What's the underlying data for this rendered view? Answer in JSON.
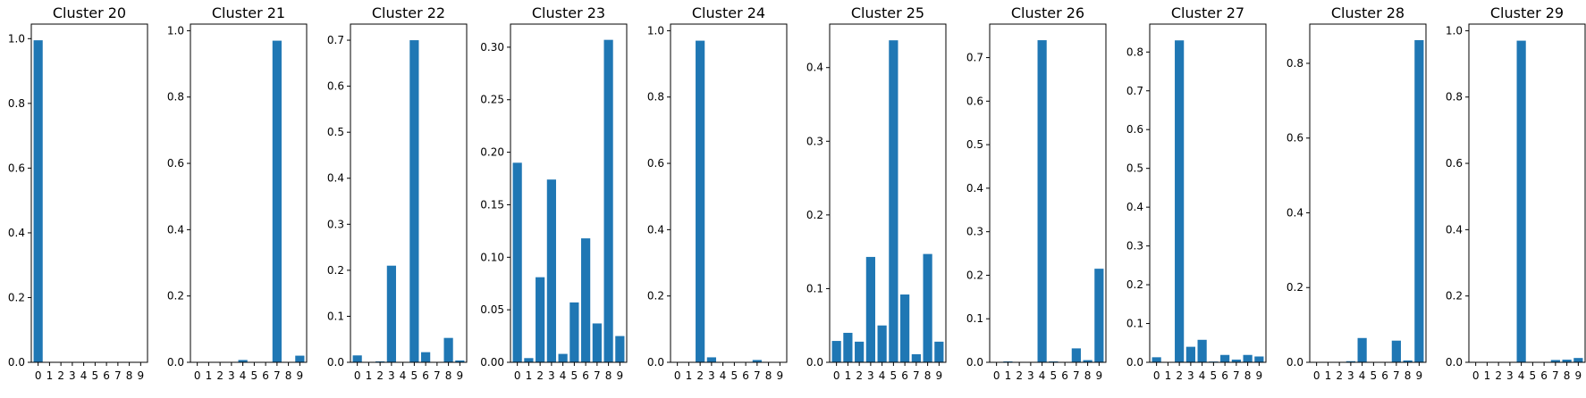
{
  "figure": {
    "background": "#ffffff",
    "bar_color": "#1f77b4"
  },
  "chart_data": [
    {
      "type": "bar",
      "title": "Cluster 20",
      "categories": [
        "0",
        "1",
        "2",
        "3",
        "4",
        "5",
        "6",
        "7",
        "8",
        "9"
      ],
      "values": [
        0.995,
        0,
        0,
        0,
        0,
        0,
        0,
        0,
        0,
        0
      ],
      "ylim": [
        0,
        1.045
      ],
      "yticks": [
        "0.0",
        "0.2",
        "0.4",
        "0.6",
        "0.8",
        "1.0"
      ],
      "ytick_values": [
        0,
        0.2,
        0.4,
        0.6,
        0.8,
        1.0
      ],
      "grid": false
    },
    {
      "type": "bar",
      "title": "Cluster 21",
      "categories": [
        "0",
        "1",
        "2",
        "3",
        "4",
        "5",
        "6",
        "7",
        "8",
        "9"
      ],
      "values": [
        0,
        0,
        0,
        0,
        0.007,
        0,
        0,
        0.97,
        0,
        0.02
      ],
      "ylim": [
        0,
        1.02
      ],
      "yticks": [
        "0.0",
        "0.2",
        "0.4",
        "0.6",
        "0.8",
        "1.0"
      ],
      "ytick_values": [
        0,
        0.2,
        0.4,
        0.6,
        0.8,
        1.0
      ],
      "grid": false
    },
    {
      "type": "bar",
      "title": "Cluster 22",
      "categories": [
        "0",
        "1",
        "2",
        "3",
        "4",
        "5",
        "6",
        "7",
        "8",
        "9"
      ],
      "values": [
        0.015,
        0,
        0.002,
        0.21,
        0,
        0.7,
        0.022,
        0,
        0.053,
        0.004
      ],
      "ylim": [
        0,
        0.735
      ],
      "yticks": [
        "0.0",
        "0.1",
        "0.2",
        "0.3",
        "0.4",
        "0.5",
        "0.6",
        "0.7"
      ],
      "ytick_values": [
        0,
        0.1,
        0.2,
        0.3,
        0.4,
        0.5,
        0.6,
        0.7
      ],
      "grid": false
    },
    {
      "type": "bar",
      "title": "Cluster 23",
      "categories": [
        "0",
        "1",
        "2",
        "3",
        "4",
        "5",
        "6",
        "7",
        "8",
        "9"
      ],
      "values": [
        0.19,
        0.004,
        0.081,
        0.174,
        0.008,
        0.057,
        0.118,
        0.037,
        0.307,
        0.025
      ],
      "ylim": [
        0,
        0.322
      ],
      "yticks": [
        "0.00",
        "0.05",
        "0.10",
        "0.15",
        "0.20",
        "0.25",
        "0.30"
      ],
      "ytick_values": [
        0,
        0.05,
        0.1,
        0.15,
        0.2,
        0.25,
        0.3
      ],
      "grid": false
    },
    {
      "type": "bar",
      "title": "Cluster 24",
      "categories": [
        "0",
        "1",
        "2",
        "3",
        "4",
        "5",
        "6",
        "7",
        "8",
        "9"
      ],
      "values": [
        0,
        0,
        0.97,
        0.015,
        0,
        0,
        0,
        0.007,
        0,
        0
      ],
      "ylim": [
        0,
        1.02
      ],
      "yticks": [
        "0.0",
        "0.2",
        "0.4",
        "0.6",
        "0.8",
        "1.0"
      ],
      "ytick_values": [
        0,
        0.2,
        0.4,
        0.6,
        0.8,
        1.0
      ],
      "grid": false
    },
    {
      "type": "bar",
      "title": "Cluster 25",
      "categories": [
        "0",
        "1",
        "2",
        "3",
        "4",
        "5",
        "6",
        "7",
        "8",
        "9"
      ],
      "values": [
        0.029,
        0.04,
        0.028,
        0.143,
        0.05,
        0.437,
        0.092,
        0.011,
        0.147,
        0.028
      ],
      "ylim": [
        0,
        0.459
      ],
      "yticks": [
        "0.0",
        "0.1",
        "0.2",
        "0.3",
        "0.4"
      ],
      "ytick_values": [
        0,
        0.1,
        0.2,
        0.3,
        0.4
      ],
      "grid": false
    },
    {
      "type": "bar",
      "title": "Cluster 26",
      "categories": [
        "0",
        "1",
        "2",
        "3",
        "4",
        "5",
        "6",
        "7",
        "8",
        "9"
      ],
      "values": [
        0,
        0.002,
        0,
        0,
        0.74,
        0.002,
        0,
        0.032,
        0.005,
        0.215
      ],
      "ylim": [
        0,
        0.777
      ],
      "yticks": [
        "0.0",
        "0.1",
        "0.2",
        "0.3",
        "0.4",
        "0.5",
        "0.6",
        "0.7"
      ],
      "ytick_values": [
        0,
        0.1,
        0.2,
        0.3,
        0.4,
        0.5,
        0.6,
        0.7
      ],
      "grid": false
    },
    {
      "type": "bar",
      "title": "Cluster 27",
      "categories": [
        "0",
        "1",
        "2",
        "3",
        "4",
        "5",
        "6",
        "7",
        "8",
        "9"
      ],
      "values": [
        0.013,
        0,
        0.83,
        0.04,
        0.058,
        0.002,
        0.019,
        0.007,
        0.019,
        0.015
      ],
      "ylim": [
        0,
        0.872
      ],
      "yticks": [
        "0.0",
        "0.1",
        "0.2",
        "0.3",
        "0.4",
        "0.5",
        "0.6",
        "0.7",
        "0.8"
      ],
      "ytick_values": [
        0,
        0.1,
        0.2,
        0.3,
        0.4,
        0.5,
        0.6,
        0.7,
        0.8
      ],
      "grid": false
    },
    {
      "type": "bar",
      "title": "Cluster 28",
      "categories": [
        "0",
        "1",
        "2",
        "3",
        "4",
        "5",
        "6",
        "7",
        "8",
        "9"
      ],
      "values": [
        0,
        0,
        0,
        0.003,
        0.065,
        0,
        0,
        0.058,
        0.005,
        0.862
      ],
      "ylim": [
        0,
        0.905
      ],
      "yticks": [
        "0.0",
        "0.2",
        "0.4",
        "0.6",
        "0.8"
      ],
      "ytick_values": [
        0,
        0.2,
        0.4,
        0.6,
        0.8
      ],
      "grid": false
    },
    {
      "type": "bar",
      "title": "Cluster 29",
      "categories": [
        "0",
        "1",
        "2",
        "3",
        "4",
        "5",
        "6",
        "7",
        "8",
        "9"
      ],
      "values": [
        0,
        0,
        0,
        0,
        0.97,
        0,
        0,
        0.007,
        0.008,
        0.013
      ],
      "ylim": [
        0,
        1.02
      ],
      "yticks": [
        "0.0",
        "0.2",
        "0.4",
        "0.6",
        "0.8",
        "1.0"
      ],
      "ytick_values": [
        0,
        0.2,
        0.4,
        0.6,
        0.8,
        1.0
      ],
      "grid": false
    }
  ]
}
